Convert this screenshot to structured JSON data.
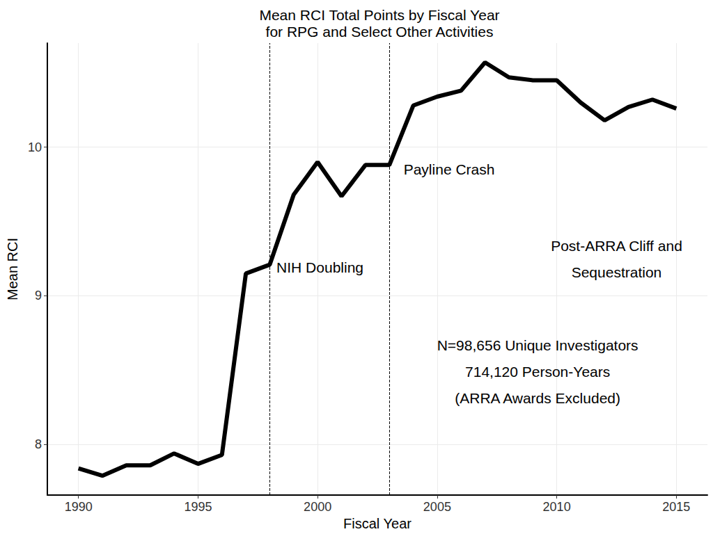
{
  "chart_data": {
    "type": "line",
    "title": "Mean RCI Total Points by Fiscal Year\nfor RPG and Select Other Activities",
    "x_label": "Fiscal Year",
    "y_label": "Mean RCI",
    "x": [
      1990,
      1991,
      1992,
      1993,
      1994,
      1995,
      1996,
      1997,
      1998,
      1999,
      2000,
      2001,
      2002,
      2003,
      2004,
      2005,
      2006,
      2007,
      2008,
      2009,
      2010,
      2011,
      2012,
      2013,
      2014,
      2015
    ],
    "values": [
      7.84,
      7.79,
      7.86,
      7.86,
      7.94,
      7.87,
      7.93,
      9.15,
      9.21,
      9.68,
      9.9,
      9.67,
      9.88,
      9.88,
      10.28,
      10.34,
      10.38,
      10.57,
      10.47,
      10.45,
      10.45,
      10.3,
      10.18,
      10.27,
      10.32,
      10.26
    ],
    "color": "#000000",
    "xlim": [
      1988.7,
      2016.3
    ],
    "ylim": [
      7.66,
      10.7
    ],
    "xticks": [
      1990,
      1995,
      2000,
      2005,
      2010,
      2015
    ],
    "yticks": [
      8,
      9,
      10
    ],
    "grid": true,
    "vlines": [
      1998,
      2003
    ],
    "annotations": [
      {
        "text": "NIH Doubling",
        "x": 2000.1,
        "y": 9.19
      },
      {
        "text": "Payline Crash",
        "x": 2005.5,
        "y": 9.85
      },
      {
        "text": "Post-ARRA Cliff and\nSequestration",
        "x": 2012.5,
        "y": 9.25
      },
      {
        "text": "N=98,656 Unique Investigators\n714,120 Person-Years\n(ARRA Awards Excluded)",
        "x": 2009.2,
        "y": 8.49
      }
    ]
  }
}
